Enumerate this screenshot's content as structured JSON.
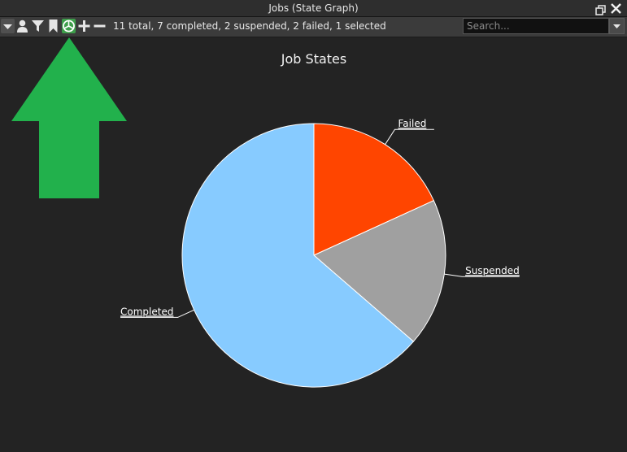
{
  "window": {
    "title": "Jobs (State Graph)"
  },
  "toolbar": {
    "summary": "11 total, 7 completed, 2 suspended, 2 failed, 1 selected",
    "search_placeholder": "Search..."
  },
  "chart_data": {
    "type": "pie",
    "title": "Job States",
    "start_angle_deg": 0,
    "direction": "clockwise",
    "slices": [
      {
        "label": "Failed",
        "value": 2,
        "color": "#ff4500"
      },
      {
        "label": "Suspended",
        "value": 2,
        "color": "#a0a0a0"
      },
      {
        "label": "Completed",
        "value": 7,
        "color": "#87cbff"
      }
    ]
  },
  "annotation": {
    "arrow_color": "#22b14c",
    "arrow_direction": "up"
  },
  "colors": {
    "background": "#232323",
    "toolbar": "#3b3b3b",
    "active_button": "#3d9e4a"
  }
}
